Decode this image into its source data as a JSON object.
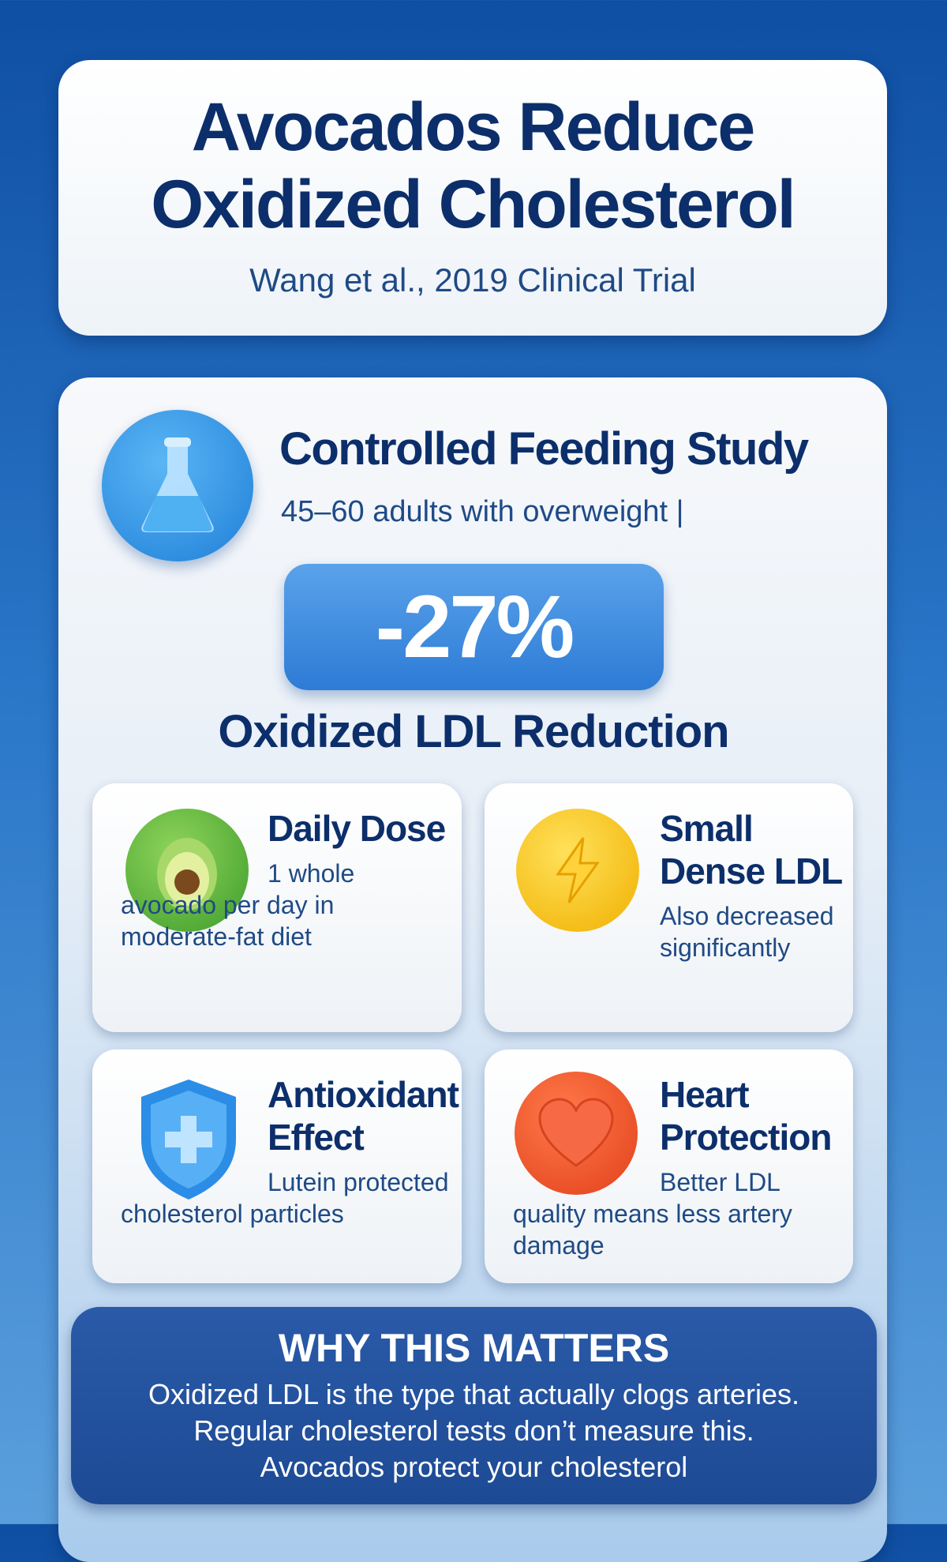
{
  "header": {
    "title": "Avocados Reduce Oxidized Cholesterol",
    "subtitle": "Wang et al., 2019 Clinical Trial"
  },
  "study": {
    "icon": "flask-icon",
    "title": "Controlled Feeding Study",
    "subtitle": "45–60 adults with overweight |",
    "stat": "-27%",
    "stat_label": "Oxidized LDL Reduction"
  },
  "features": [
    {
      "icon": "avocado-icon",
      "title": "Daily Dose",
      "text": "1 whole avocado per day in moderate-fat diet"
    },
    {
      "icon": "lightning-icon",
      "title": "Small Dense LDL",
      "text": "Also decreased significantly"
    },
    {
      "icon": "shield-plus-icon",
      "title": "Antioxidant Effect",
      "text": "Lutein protected cholesterol particles"
    },
    {
      "icon": "heart-icon",
      "title": "Heart Protection",
      "text": "Better LDL quality means less artery damage"
    }
  ],
  "why": {
    "title": "WHY THIS MATTERS",
    "body": "Oxidized LDL is the type that actually clogs arteries.\nRegular cholesterol tests don’t measure this.\nAvocados protect your cholesterol"
  },
  "colors": {
    "navy": "#0c2f6b",
    "accent": "#2d7bd6",
    "avocado": "#4caf3a",
    "lightning": "#f5c21b",
    "heart": "#f0502a"
  }
}
